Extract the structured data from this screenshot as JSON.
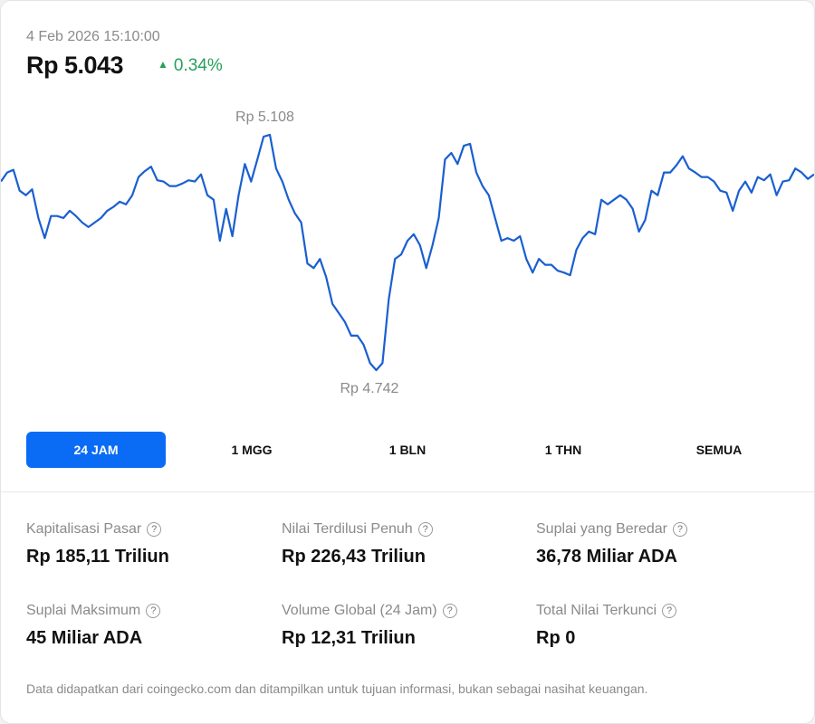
{
  "header": {
    "timestamp": "4 Feb 2026 15:10:00",
    "price": "Rp 5.043",
    "change": "0.34%",
    "change_icon": "triangle-up-icon",
    "change_color": "#27a05a"
  },
  "chart_data": {
    "type": "line",
    "title": "",
    "xlabel": "",
    "ylabel": "",
    "grid": false,
    "color": "#1a5fd0",
    "max_label": "Rp 5.108",
    "min_label": "Rp 4.742",
    "ylim": [
      4742,
      5108
    ],
    "values": [
      5032,
      5046,
      5050,
      5018,
      5011,
      5020,
      4976,
      4945,
      4979,
      4979,
      4976,
      4987,
      4979,
      4969,
      4962,
      4969,
      4976,
      4987,
      4993,
      5001,
      4997,
      5011,
      5039,
      5048,
      5055,
      5034,
      5032,
      5025,
      5025,
      5029,
      5034,
      5032,
      5043,
      5011,
      5004,
      4941,
      4990,
      4948,
      5011,
      5059,
      5032,
      5066,
      5101,
      5104,
      5052,
      5032,
      5004,
      4983,
      4969,
      4906,
      4899,
      4913,
      4885,
      4844,
      4830,
      4816,
      4795,
      4795,
      4781,
      4753,
      4742,
      4753,
      4851,
      4913,
      4920,
      4941,
      4951,
      4934,
      4899,
      4934,
      4976,
      5066,
      5076,
      5059,
      5087,
      5090,
      5046,
      5025,
      5011,
      4976,
      4941,
      4945,
      4941,
      4948,
      4913,
      4892,
      4913,
      4904,
      4904,
      4895,
      4892,
      4888,
      4927,
      4945,
      4955,
      4951,
      5004,
      4997,
      5004,
      5011,
      5004,
      4990,
      4955,
      4973,
      5018,
      5011,
      5046,
      5046,
      5057,
      5071,
      5052,
      5046,
      5039,
      5039,
      5032,
      5018,
      5015,
      4987,
      5018,
      5032,
      5015,
      5039,
      5034,
      5043,
      5011,
      5032,
      5034,
      5052,
      5046,
      5036,
      5043
    ]
  },
  "tabs": [
    "24 JAM",
    "1 MGG",
    "1 BLN",
    "1 THN",
    "SEMUA"
  ],
  "stats": [
    {
      "label": "Kapitalisasi Pasar",
      "value": "Rp 185,11 Triliun"
    },
    {
      "label": "Nilai Terdilusi Penuh",
      "value": "Rp 226,43 Triliun"
    },
    {
      "label": "Suplai yang Beredar",
      "value": "36,78 Miliar ADA"
    },
    {
      "label": "Suplai Maksimum",
      "value": "45 Miliar ADA"
    },
    {
      "label": "Volume Global (24 Jam)",
      "value": "Rp 12,31 Triliun"
    },
    {
      "label": "Total Nilai Terkunci",
      "value": "Rp 0"
    }
  ],
  "help_glyph": "?",
  "footer": "Data didapatkan dari coingecko.com dan ditampilkan untuk tujuan informasi, bukan sebagai nasihat keuangan."
}
